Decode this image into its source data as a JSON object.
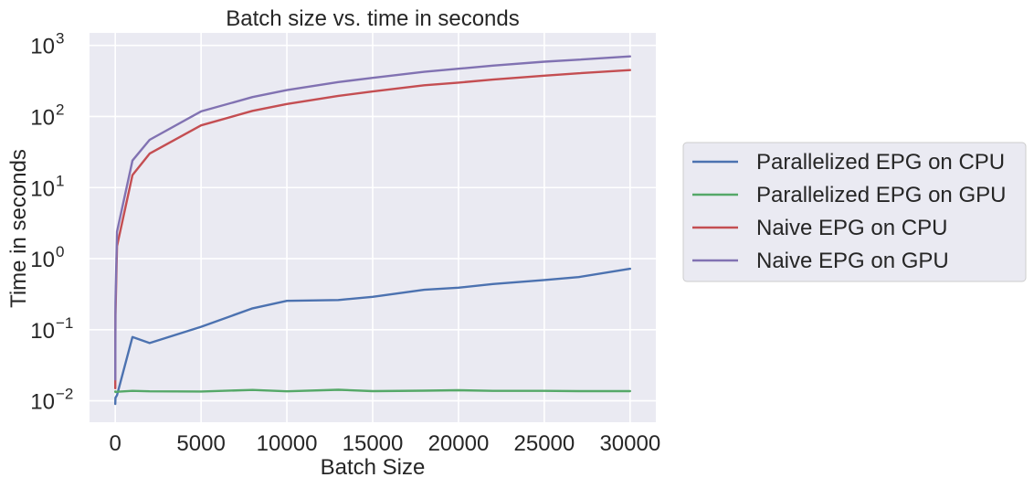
{
  "chart_data": {
    "type": "line",
    "title": "Batch size vs. time in seconds",
    "xlabel": "Batch Size",
    "ylabel": "Time in seconds",
    "xlim": [
      -1500,
      31500
    ],
    "ylim": [
      0.005,
      1500
    ],
    "yscale": "log",
    "grid": true,
    "legend_position": "right-outside",
    "x_ticks": [
      0,
      5000,
      10000,
      15000,
      20000,
      25000,
      30000
    ],
    "x_tick_labels": [
      "0",
      "5000",
      "10000",
      "15000",
      "20000",
      "25000",
      "30000"
    ],
    "y_ticks": [
      {
        "value": 0.01,
        "base": "10",
        "exp": "−2"
      },
      {
        "value": 0.1,
        "base": "10",
        "exp": "−1"
      },
      {
        "value": 1,
        "base": "10",
        "exp": "0"
      },
      {
        "value": 10,
        "base": "10",
        "exp": "1"
      },
      {
        "value": 100,
        "base": "10",
        "exp": "2"
      },
      {
        "value": 1000,
        "base": "10",
        "exp": "3"
      }
    ],
    "series": [
      {
        "name": "Parallelized EPG on CPU",
        "color": "#4c72b0",
        "x": [
          1,
          10,
          100,
          1000,
          2000,
          5000,
          8000,
          10000,
          13000,
          15000,
          18000,
          20000,
          22000,
          25000,
          27000,
          30000
        ],
        "y": [
          0.009,
          0.011,
          0.012,
          0.079,
          0.065,
          0.11,
          0.2,
          0.255,
          0.262,
          0.29,
          0.365,
          0.39,
          0.44,
          0.5,
          0.55,
          0.72
        ]
      },
      {
        "name": "Parallelized EPG on GPU",
        "color": "#55a868",
        "x": [
          1,
          10,
          100,
          1000,
          2000,
          5000,
          8000,
          10000,
          13000,
          15000,
          18000,
          20000,
          22000,
          25000,
          27000,
          30000
        ],
        "y": [
          0.0135,
          0.0133,
          0.0134,
          0.0138,
          0.0136,
          0.0135,
          0.0142,
          0.0136,
          0.0143,
          0.0137,
          0.0139,
          0.0141,
          0.0138,
          0.0138,
          0.0137,
          0.0137
        ]
      },
      {
        "name": "Naive EPG on CPU",
        "color": "#c44e52",
        "x": [
          1,
          10,
          100,
          1000,
          2000,
          5000,
          8000,
          10000,
          13000,
          15000,
          18000,
          20000,
          22000,
          25000,
          27000,
          30000
        ],
        "y": [
          0.015,
          0.16,
          1.5,
          15,
          30,
          75,
          120,
          150,
          195,
          225,
          275,
          300,
          330,
          375,
          405,
          450
        ]
      },
      {
        "name": "Naive EPG on GPU",
        "color": "#8172b2",
        "x": [
          1,
          10,
          100,
          1000,
          2000,
          5000,
          8000,
          10000,
          13000,
          15000,
          18000,
          20000,
          22000,
          25000,
          27000,
          30000
        ],
        "y": [
          0.02,
          0.24,
          2.4,
          24,
          47,
          118,
          188,
          235,
          305,
          350,
          425,
          470,
          520,
          590,
          630,
          700
        ]
      }
    ]
  }
}
